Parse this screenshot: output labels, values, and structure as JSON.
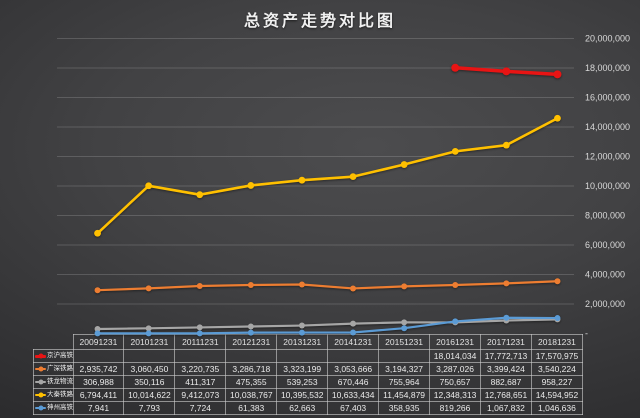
{
  "title": "总资产走势对比图",
  "y_axis": {
    "side": "right",
    "max": 20000000,
    "step": 2000000,
    "labels": [
      "20,000,000",
      "18,000,000",
      "16,000,000",
      "14,000,000",
      "12,000,000",
      "10,000,000",
      "8,000,000",
      "6,000,000",
      "4,000,000",
      "2,000,000",
      "-"
    ]
  },
  "colors": {
    "background_center": "#4c4c4e",
    "background_edge": "#242426",
    "gridline": "rgba(255,255,255,0.16)",
    "table_border": "rgba(205,205,205,0.62)",
    "text": "#ebebeb"
  },
  "chart_data": {
    "type": "line",
    "title": "总资产走势对比图",
    "categories": [
      "20091231",
      "20101231",
      "20111231",
      "20121231",
      "20131231",
      "20141231",
      "20151231",
      "20161231",
      "20171231",
      "20181231"
    ],
    "ylim": [
      0,
      20000000
    ],
    "grid": true,
    "legend_position": "table-rows-left",
    "series": [
      {
        "name": "京沪高铁",
        "color": "#e81414",
        "line_width": 3.5,
        "marker_radius": 4,
        "values": [
          null,
          null,
          null,
          null,
          null,
          null,
          null,
          18014034,
          17772713,
          17570975
        ]
      },
      {
        "name": "广深铁路",
        "color": "#ed7d31",
        "line_width": 2.2,
        "marker_radius": 3,
        "values": [
          2935742,
          3060450,
          3220735,
          3286718,
          3323199,
          3053666,
          3194327,
          3287026,
          3399424,
          3540224
        ]
      },
      {
        "name": "铁龙物流",
        "color": "#a6a6a6",
        "line_width": 2.2,
        "marker_radius": 3,
        "values": [
          306988,
          350116,
          411317,
          475355,
          539253,
          670446,
          755964,
          750657,
          882687,
          958227
        ]
      },
      {
        "name": "大秦铁路",
        "color": "#ffc000",
        "line_width": 2.6,
        "marker_radius": 3.4,
        "values": [
          6794411,
          10014622,
          9412073,
          10038767,
          10395532,
          10633434,
          11454879,
          12348313,
          12768651,
          14594952
        ]
      },
      {
        "name": "神州高铁",
        "color": "#5b9bd5",
        "line_width": 2.2,
        "marker_radius": 3,
        "values": [
          7941,
          7793,
          7724,
          61383,
          62663,
          67403,
          358935,
          819266,
          1067832,
          1046636
        ]
      }
    ]
  }
}
